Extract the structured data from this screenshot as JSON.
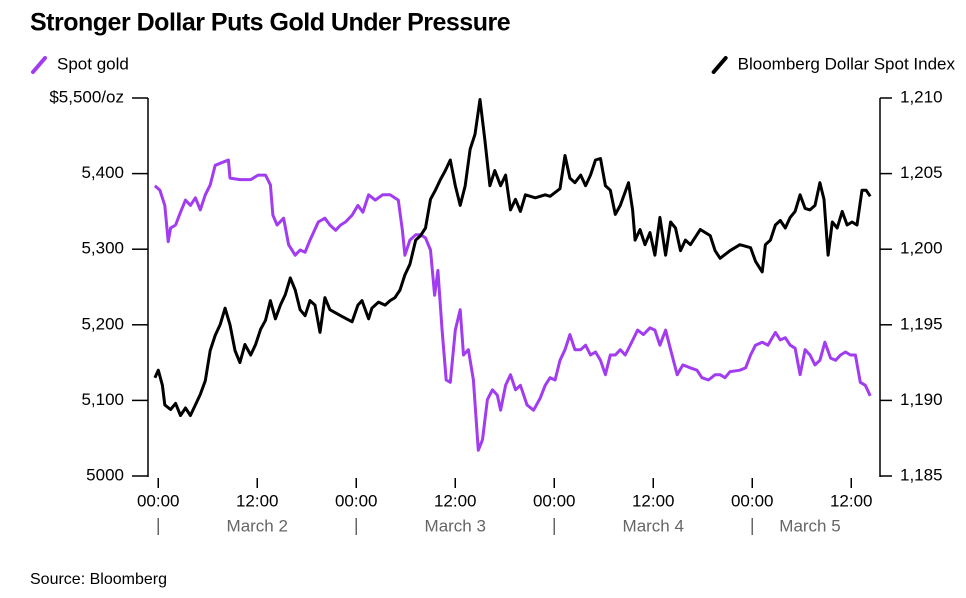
{
  "chart_data": {
    "type": "line",
    "title": "Stronger Dollar Puts Gold Under Pressure",
    "source": "Source: Bloomberg",
    "xlim": [
      -1,
      87
    ],
    "xticks": [
      {
        "value": 0,
        "label": "00:00"
      },
      {
        "value": 12,
        "label": "12:00"
      },
      {
        "value": 24,
        "label": "00:00"
      },
      {
        "value": 36,
        "label": "12:00"
      },
      {
        "value": 48,
        "label": "00:00"
      },
      {
        "value": 60,
        "label": "12:00"
      },
      {
        "value": 72,
        "label": "00:00"
      },
      {
        "value": 84,
        "label": "12:00"
      }
    ],
    "day_labels": [
      {
        "value": 12,
        "label": "March 2"
      },
      {
        "value": 36,
        "label": "March 3"
      },
      {
        "value": 60,
        "label": "March 4"
      },
      {
        "value": 79,
        "label": "March 5"
      }
    ],
    "ylim": [
      5000,
      5500
    ],
    "yticks": [
      5000,
      {
        "value": 5100,
        "label": "5,100"
      },
      {
        "value": 5200,
        "label": "5,200"
      },
      {
        "value": 5300,
        "label": "5,300"
      },
      {
        "value": 5400,
        "label": "5,400"
      },
      {
        "value": 5500,
        "label": "$5,500/oz"
      }
    ],
    "y2lim": [
      1185,
      1210
    ],
    "y2ticks": [
      {
        "value": 1185,
        "label": "1,185"
      },
      {
        "value": 1190,
        "label": "1,190"
      },
      {
        "value": 1195,
        "label": "1,195"
      },
      {
        "value": 1200,
        "label": "1,200"
      },
      {
        "value": 1205,
        "label": "1,205"
      },
      {
        "value": 1210,
        "label": "1,210"
      }
    ],
    "series": [
      {
        "name": "Spot gold",
        "color": "#a23cf0",
        "axis": "y",
        "x": [
          -0.4,
          0.2,
          0.8,
          1.2,
          1.5,
          2.1,
          2.7,
          3.3,
          3.9,
          4.5,
          5.1,
          5.7,
          6.3,
          6.9,
          7.8,
          8.5,
          8.7,
          9.9,
          11.2,
          12.1,
          13.0,
          13.6,
          13.9,
          14.4,
          15.2,
          15.8,
          16.6,
          17.2,
          17.8,
          18.4,
          19.4,
          20.2,
          20.8,
          21.5,
          22.1,
          22.7,
          23.5,
          24.2,
          24.8,
          25.5,
          26.3,
          27.2,
          28.1,
          29.1,
          29.6,
          29.9,
          30.5,
          31.2,
          31.8,
          32.4,
          33.0,
          33.5,
          33.9,
          34.4,
          34.9,
          35.4,
          36.0,
          36.6,
          37.0,
          37.6,
          38.2,
          38.8,
          39.3,
          39.9,
          40.5,
          41.1,
          41.5,
          42.1,
          42.7,
          43.3,
          43.9,
          44.7,
          45.5,
          46.3,
          46.9,
          47.5,
          48.1,
          48.7,
          49.3,
          49.9,
          50.5,
          51.2,
          51.8,
          52.4,
          53.0,
          53.6,
          54.2,
          54.8,
          55.4,
          56.0,
          56.6,
          57.2,
          58.1,
          58.8,
          59.6,
          60.2,
          60.8,
          61.5,
          62.1,
          62.9,
          63.6,
          64.5,
          65.3,
          65.9,
          66.7,
          67.5,
          68.1,
          68.7,
          69.3,
          70.5,
          71.2,
          71.8,
          72.4,
          73.2,
          73.9,
          74.8,
          75.4,
          76.0,
          76.6,
          77.2,
          77.8,
          78.4,
          79.0,
          79.6,
          80.2,
          80.8,
          81.5,
          82.1,
          82.7,
          83.3,
          83.9,
          84.5,
          85.1,
          85.7,
          86.3
        ],
        "values": [
          5384,
          5378,
          5358,
          5310,
          5328,
          5332,
          5349,
          5365,
          5358,
          5368,
          5352,
          5372,
          5385,
          5411,
          5415,
          5418,
          5394,
          5392,
          5392,
          5398,
          5398,
          5385,
          5345,
          5332,
          5341,
          5306,
          5292,
          5299,
          5296,
          5312,
          5336,
          5341,
          5332,
          5325,
          5332,
          5336,
          5345,
          5358,
          5349,
          5372,
          5365,
          5372,
          5372,
          5365,
          5325,
          5292,
          5312,
          5319,
          5319,
          5315,
          5299,
          5239,
          5272,
          5193,
          5127,
          5124,
          5193,
          5220,
          5160,
          5167,
          5127,
          5034,
          5048,
          5101,
          5114,
          5107,
          5087,
          5120,
          5134,
          5114,
          5120,
          5094,
          5087,
          5103,
          5120,
          5130,
          5127,
          5153,
          5167,
          5187,
          5167,
          5167,
          5173,
          5160,
          5164,
          5153,
          5134,
          5160,
          5160,
          5167,
          5160,
          5173,
          5193,
          5187,
          5196,
          5193,
          5173,
          5193,
          5167,
          5134,
          5147,
          5143,
          5140,
          5130,
          5127,
          5134,
          5134,
          5130,
          5138,
          5140,
          5143,
          5160,
          5173,
          5177,
          5173,
          5190,
          5180,
          5183,
          5173,
          5169,
          5134,
          5167,
          5160,
          5147,
          5153,
          5177,
          5156,
          5153,
          5160,
          5164,
          5160,
          5160,
          5124,
          5120,
          5106
        ]
      },
      {
        "name": "Bloomberg Dollar Spot Index",
        "color": "#000000",
        "axis": "y2",
        "x": [
          -0.4,
          0.0,
          0.5,
          0.8,
          1.5,
          2.1,
          2.7,
          3.3,
          3.9,
          4.5,
          5.1,
          5.7,
          6.3,
          6.9,
          7.5,
          8.1,
          8.7,
          9.3,
          9.9,
          10.5,
          11.2,
          11.8,
          12.4,
          13.0,
          13.6,
          14.2,
          14.8,
          15.4,
          16.0,
          16.6,
          17.2,
          17.8,
          18.4,
          19.0,
          19.6,
          20.2,
          20.8,
          22.1,
          23.5,
          24.2,
          24.7,
          25.5,
          25.9,
          26.7,
          27.5,
          28.1,
          28.7,
          29.3,
          29.9,
          30.5,
          31.2,
          31.8,
          32.4,
          33.0,
          33.6,
          34.2,
          34.8,
          35.4,
          36.0,
          36.6,
          37.2,
          37.8,
          38.4,
          39.0,
          39.6,
          40.2,
          40.8,
          41.5,
          42.1,
          42.7,
          43.3,
          43.9,
          44.5,
          45.7,
          46.9,
          47.5,
          48.7,
          49.3,
          49.9,
          50.5,
          51.2,
          51.8,
          52.4,
          53.0,
          53.6,
          54.2,
          54.8,
          55.4,
          56.0,
          57.0,
          57.5,
          57.8,
          58.4,
          59.0,
          59.6,
          60.2,
          60.8,
          61.5,
          62.1,
          62.7,
          63.3,
          63.9,
          64.5,
          65.7,
          66.9,
          67.5,
          68.1,
          69.3,
          70.5,
          71.8,
          72.4,
          73.2,
          73.6,
          74.2,
          74.8,
          75.4,
          76.0,
          76.6,
          77.2,
          77.8,
          78.4,
          79.0,
          79.6,
          80.2,
          80.7,
          81.2,
          81.7,
          82.3,
          82.9,
          83.5,
          84.1,
          84.7,
          85.3,
          85.8,
          86.3
        ],
        "values": [
          1191.5,
          1192.0,
          1191.0,
          1189.7,
          1189.4,
          1189.8,
          1189.0,
          1189.5,
          1189.0,
          1189.7,
          1190.4,
          1191.3,
          1193.3,
          1194.3,
          1195.0,
          1196.1,
          1195.0,
          1193.3,
          1192.5,
          1193.7,
          1193.0,
          1193.7,
          1194.7,
          1195.3,
          1196.6,
          1195.4,
          1196.3,
          1197.0,
          1198.1,
          1197.3,
          1196.0,
          1195.6,
          1196.6,
          1196.3,
          1194.5,
          1196.8,
          1196.0,
          1195.6,
          1195.2,
          1196.3,
          1196.6,
          1195.4,
          1196.1,
          1196.5,
          1196.3,
          1196.6,
          1196.8,
          1197.3,
          1198.3,
          1199.0,
          1200.6,
          1200.9,
          1201.4,
          1203.3,
          1203.9,
          1204.6,
          1205.2,
          1205.9,
          1204.2,
          1202.9,
          1204.2,
          1206.6,
          1207.6,
          1209.9,
          1207.2,
          1204.2,
          1205.2,
          1204.2,
          1204.9,
          1202.6,
          1203.3,
          1202.5,
          1203.6,
          1203.4,
          1203.6,
          1203.5,
          1204.0,
          1206.2,
          1204.7,
          1204.4,
          1204.9,
          1204.2,
          1204.9,
          1205.9,
          1206.0,
          1204.2,
          1203.9,
          1202.3,
          1202.9,
          1204.4,
          1202.6,
          1200.6,
          1201.3,
          1200.3,
          1201.1,
          1199.6,
          1202.1,
          1199.6,
          1201.8,
          1201.4,
          1199.9,
          1200.6,
          1200.3,
          1201.3,
          1200.9,
          1199.9,
          1199.4,
          1199.9,
          1200.3,
          1200.1,
          1199.2,
          1198.5,
          1200.3,
          1200.6,
          1201.6,
          1201.9,
          1201.4,
          1202.1,
          1202.5,
          1203.6,
          1202.7,
          1202.6,
          1202.9,
          1204.4,
          1203.3,
          1199.6,
          1201.8,
          1201.4,
          1202.5,
          1201.6,
          1201.8,
          1201.6,
          1203.9,
          1203.9,
          1203.5
        ]
      }
    ]
  }
}
